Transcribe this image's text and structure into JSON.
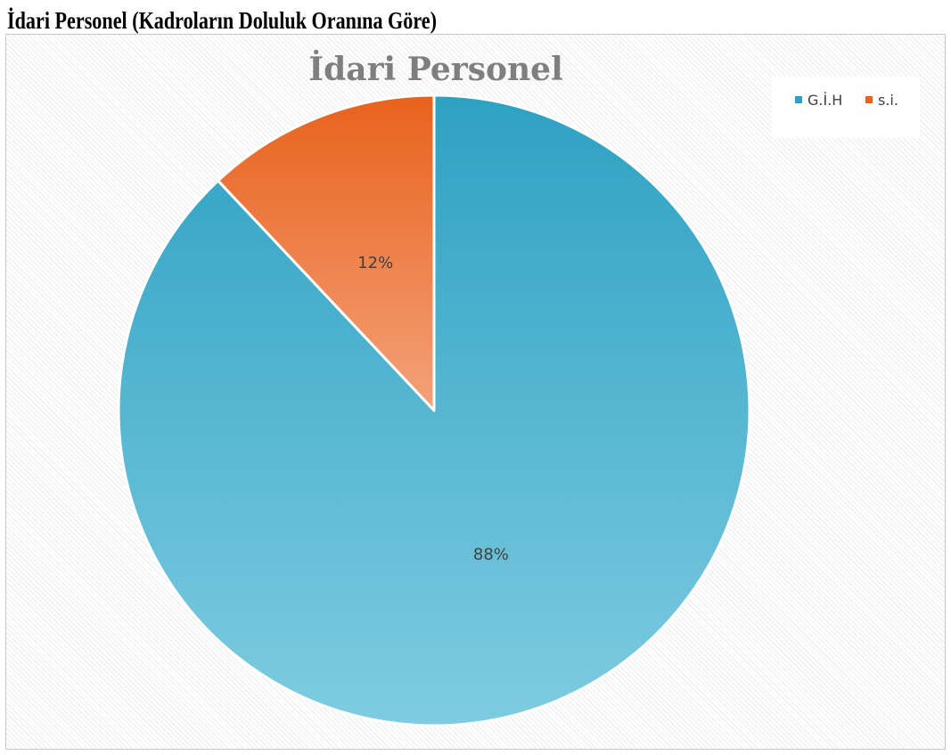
{
  "page": {
    "heading": "İdari Personel (Kadroların Doluluk Oranına Göre)"
  },
  "chart_data": {
    "type": "pie",
    "title": "İdari Personel",
    "legend_position": "top-right",
    "categories": [
      "G.İ.H",
      "s.i."
    ],
    "values": [
      88,
      12
    ],
    "labels": [
      "88%",
      "12%"
    ],
    "colors": {
      "G.İ.H": {
        "base": "#2EA1C2",
        "light": "#7ECCE1"
      },
      "s.i.": {
        "base": "#E8621C",
        "light": "#F4A17A"
      }
    }
  }
}
